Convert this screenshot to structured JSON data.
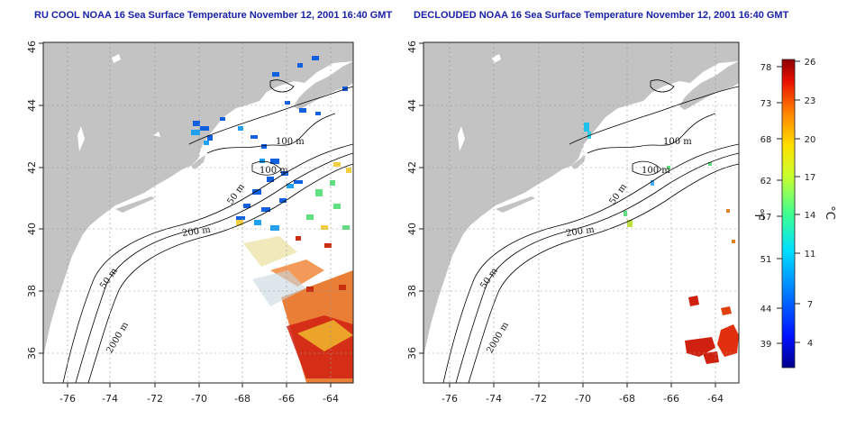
{
  "panels": [
    {
      "title": "RU COOL NOAA 16 Sea Surface Temperature November 12, 2001 16:40 GMT",
      "contour_labels": [
        "100 m",
        "100 m",
        "50 m",
        "200 m",
        "50 m",
        "2000 m"
      ]
    },
    {
      "title": "DECLOUDED NOAA 16 Sea Surface Temperature November 12, 2001 16:40 GMT",
      "contour_labels": [
        "100 m",
        "100 m",
        "50 m",
        "200 m",
        "50 m",
        "2000 m"
      ]
    }
  ],
  "axes": {
    "lon_ticks": [
      "-76",
      "-74",
      "-72",
      "-70",
      "-68",
      "-66",
      "-64"
    ],
    "lat_ticks": [
      "36",
      "38",
      "40",
      "42",
      "44",
      "46"
    ]
  },
  "colorbar": {
    "fahrenheit_ticks": [
      "78",
      "73",
      "68",
      "62",
      "57",
      "51",
      "44",
      "39"
    ],
    "celsius_ticks": [
      "26",
      "23",
      "20",
      "17",
      "14",
      "11",
      "7",
      "4"
    ],
    "fahrenheit_unit": "°F",
    "celsius_unit": "°C"
  },
  "colors": {
    "land": "#c3c3c3",
    "title": "#1a22a8",
    "grid": "#9a9a9a"
  }
}
